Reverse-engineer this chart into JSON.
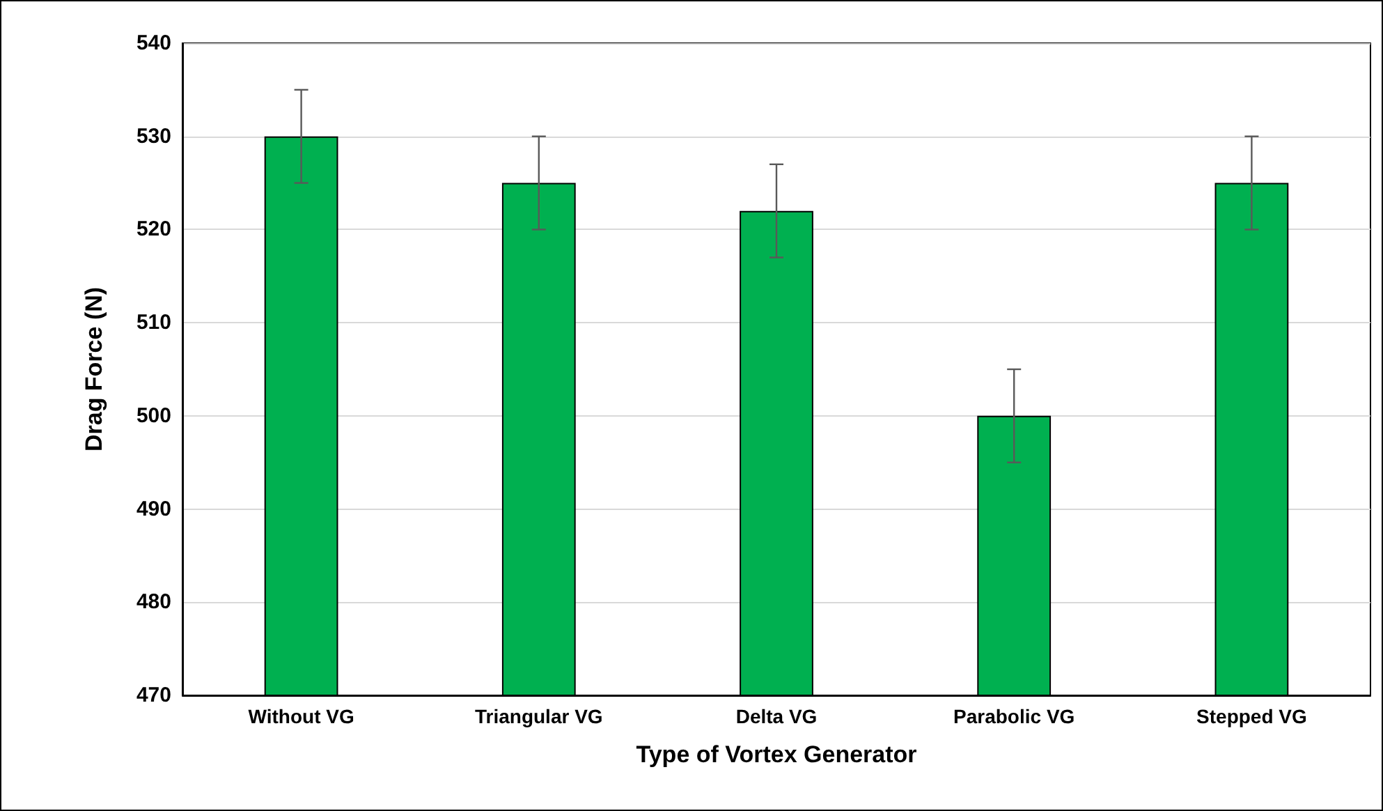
{
  "chart_data": {
    "type": "bar",
    "xlabel": "Type of Vortex Generator",
    "ylabel": "Drag Force (N)",
    "categories": [
      "Without VG",
      "Triangular VG",
      "Delta VG",
      "Parabolic VG",
      "Stepped VG"
    ],
    "values": [
      530,
      525,
      522,
      500,
      525
    ],
    "errors": [
      5,
      5,
      5,
      5,
      5
    ],
    "color": "#00b050",
    "ylim": [
      470,
      540
    ],
    "yticks": [
      470,
      480,
      490,
      500,
      510,
      520,
      530,
      540
    ],
    "grid": "y"
  }
}
